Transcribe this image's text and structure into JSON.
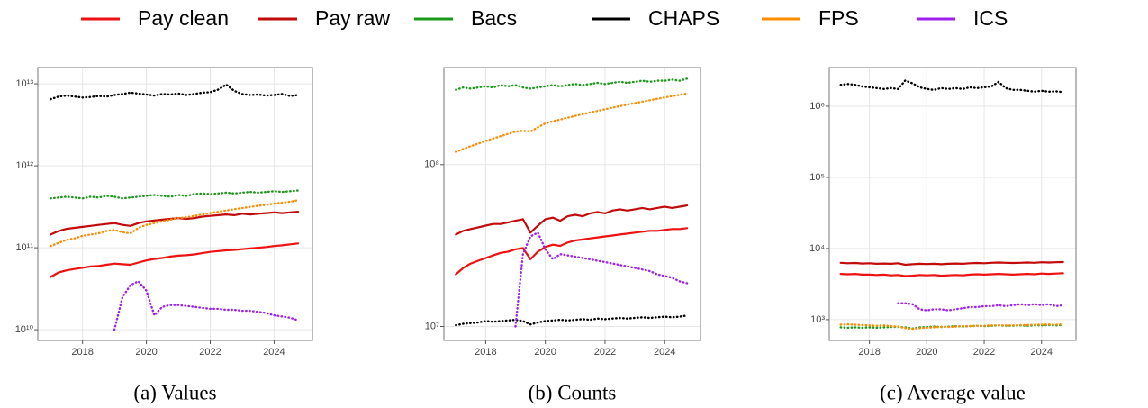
{
  "chart_data": [
    {
      "type": "line",
      "title": "(a) Values",
      "yscale": "log",
      "grid": true,
      "x": [
        2017,
        2017.25,
        2017.5,
        2017.75,
        2018,
        2018.25,
        2018.5,
        2018.75,
        2019,
        2019.25,
        2019.5,
        2019.75,
        2020,
        2020.25,
        2020.5,
        2020.75,
        2021,
        2021.25,
        2021.5,
        2021.75,
        2022,
        2022.25,
        2022.5,
        2022.75,
        2023,
        2023.25,
        2023.5,
        2023.75,
        2024,
        2024.25,
        2024.5,
        2024.75
      ],
      "xlim": [
        2016.6,
        2025.2
      ],
      "xticks": [
        2018,
        2020,
        2022,
        2024
      ],
      "ylim": [
        7400000000.0,
        15800000000000.0
      ],
      "yticks": [
        {
          "value": 10000000000.0,
          "label": "10¹⁰"
        },
        {
          "value": 100000000000.0,
          "label": "10¹¹"
        },
        {
          "value": 1000000000000.0,
          "label": "10¹²"
        },
        {
          "value": 10000000000000.0,
          "label": "10¹³"
        }
      ],
      "series": [
        {
          "name": "Pay clean",
          "color": "#ee1111",
          "style": "solid",
          "values": [
            44000000000.0,
            50000000000.0,
            53000000000.0,
            55000000000.0,
            57000000000.0,
            59000000000.0,
            60000000000.0,
            62000000000.0,
            64000000000.0,
            63000000000.0,
            62000000000.0,
            66000000000.0,
            70000000000.0,
            73000000000.0,
            75000000000.0,
            78000000000.0,
            80000000000.0,
            81000000000.0,
            83000000000.0,
            86000000000.0,
            89000000000.0,
            91000000000.0,
            93000000000.0,
            94000000000.0,
            96000000000.0,
            98000000000.0,
            100000000000.0,
            102000000000.0,
            105000000000.0,
            107000000000.0,
            110000000000.0,
            113000000000.0
          ]
        },
        {
          "name": "Pay raw",
          "color": "#c20a0a",
          "style": "solid",
          "values": [
            145000000000.0,
            160000000000.0,
            170000000000.0,
            175000000000.0,
            180000000000.0,
            185000000000.0,
            190000000000.0,
            195000000000.0,
            200000000000.0,
            190000000000.0,
            185000000000.0,
            200000000000.0,
            210000000000.0,
            215000000000.0,
            220000000000.0,
            225000000000.0,
            230000000000.0,
            225000000000.0,
            230000000000.0,
            240000000000.0,
            245000000000.0,
            250000000000.0,
            255000000000.0,
            250000000000.0,
            260000000000.0,
            255000000000.0,
            260000000000.0,
            265000000000.0,
            270000000000.0,
            265000000000.0,
            270000000000.0,
            275000000000.0
          ]
        },
        {
          "name": "Bacs",
          "color": "#1a9a1a",
          "style": "dotted",
          "values": [
            400000000000.0,
            410000000000.0,
            420000000000.0,
            410000000000.0,
            400000000000.0,
            420000000000.0,
            410000000000.0,
            430000000000.0,
            420000000000.0,
            400000000000.0,
            410000000000.0,
            420000000000.0,
            430000000000.0,
            440000000000.0,
            430000000000.0,
            420000000000.0,
            440000000000.0,
            430000000000.0,
            450000000000.0,
            460000000000.0,
            450000000000.0,
            460000000000.0,
            470000000000.0,
            460000000000.0,
            470000000000.0,
            480000000000.0,
            470000000000.0,
            480000000000.0,
            490000000000.0,
            480000000000.0,
            490000000000.0,
            500000000000.0
          ]
        },
        {
          "name": "CHAPS",
          "color": "#000000",
          "style": "dotted",
          "values": [
            6500000000000.0,
            7000000000000.0,
            7200000000000.0,
            7000000000000.0,
            6800000000000.0,
            6900000000000.0,
            7100000000000.0,
            7000000000000.0,
            7300000000000.0,
            7500000000000.0,
            7800000000000.0,
            7600000000000.0,
            7400000000000.0,
            7200000000000.0,
            7500000000000.0,
            7400000000000.0,
            7600000000000.0,
            7300000000000.0,
            7500000000000.0,
            7800000000000.0,
            7900000000000.0,
            8500000000000.0,
            9800000000000.0,
            8200000000000.0,
            7500000000000.0,
            7300000000000.0,
            7400000000000.0,
            7200000000000.0,
            7300000000000.0,
            7500000000000.0,
            7100000000000.0,
            7300000000000.0
          ]
        },
        {
          "name": "FPS",
          "color": "#ff8c00",
          "style": "dotted",
          "values": [
            105000000000.0,
            115000000000.0,
            125000000000.0,
            130000000000.0,
            140000000000.0,
            145000000000.0,
            150000000000.0,
            160000000000.0,
            165000000000.0,
            155000000000.0,
            150000000000.0,
            175000000000.0,
            190000000000.0,
            200000000000.0,
            210000000000.0,
            220000000000.0,
            230000000000.0,
            235000000000.0,
            245000000000.0,
            255000000000.0,
            265000000000.0,
            275000000000.0,
            285000000000.0,
            295000000000.0,
            305000000000.0,
            315000000000.0,
            325000000000.0,
            335000000000.0,
            345000000000.0,
            355000000000.0,
            365000000000.0,
            380000000000.0
          ]
        },
        {
          "name": "ICS",
          "color": "#a020f0",
          "style": "dotted",
          "values": [
            null,
            null,
            null,
            null,
            null,
            null,
            null,
            null,
            10000000000.0,
            25000000000.0,
            35000000000.0,
            39000000000.0,
            30000000000.0,
            15000000000.0,
            19000000000.0,
            20000000000.0,
            20000000000.0,
            19500000000.0,
            19000000000.0,
            18500000000.0,
            18000000000.0,
            18000000000.0,
            17500000000.0,
            17500000000.0,
            17000000000.0,
            17000000000.0,
            16500000000.0,
            16000000000.0,
            15000000000.0,
            14500000000.0,
            14000000000.0,
            13000000000.0
          ]
        }
      ]
    },
    {
      "type": "line",
      "title": "(b) Counts",
      "yscale": "log",
      "grid": true,
      "x": [
        2017,
        2017.25,
        2017.5,
        2017.75,
        2018,
        2018.25,
        2018.5,
        2018.75,
        2019,
        2019.25,
        2019.5,
        2019.75,
        2020,
        2020.25,
        2020.5,
        2020.75,
        2021,
        2021.25,
        2021.5,
        2021.75,
        2022,
        2022.25,
        2022.5,
        2022.75,
        2023,
        2023.25,
        2023.5,
        2023.75,
        2024,
        2024.25,
        2024.5,
        2024.75
      ],
      "xlim": [
        2016.6,
        2025.2
      ],
      "xticks": [
        2018,
        2020,
        2022,
        2024
      ],
      "ylim": [
        8200000.0,
        398000000.0
      ],
      "yticks": [
        {
          "value": 10000000.0,
          "label": "10⁷"
        },
        {
          "value": 100000000.0,
          "label": "10⁸"
        }
      ],
      "series": [
        {
          "name": "Pay clean",
          "color": "#ee1111",
          "style": "solid",
          "values": [
            21000000.0,
            23000000.0,
            24500000.0,
            25500000.0,
            26500000.0,
            27500000.0,
            28500000.0,
            29000000.0,
            30000000.0,
            30500000.0,
            26000000.0,
            29000000.0,
            31000000.0,
            32000000.0,
            31500000.0,
            33000000.0,
            34000000.0,
            34500000.0,
            35000000.0,
            35500000.0,
            36000000.0,
            36500000.0,
            37000000.0,
            37500000.0,
            38000000.0,
            38500000.0,
            39000000.0,
            39000000.0,
            39500000.0,
            40000000.0,
            40000000.0,
            40500000.0
          ]
        },
        {
          "name": "Pay raw",
          "color": "#c20a0a",
          "style": "solid",
          "values": [
            37000000.0,
            39000000.0,
            40000000.0,
            41000000.0,
            42000000.0,
            43000000.0,
            43000000.0,
            44000000.0,
            45000000.0,
            46000000.0,
            38000000.0,
            42000000.0,
            46000000.0,
            47000000.0,
            45000000.0,
            48000000.0,
            49000000.0,
            48000000.0,
            50000000.0,
            51000000.0,
            50000000.0,
            52000000.0,
            53000000.0,
            52000000.0,
            53000000.0,
            54000000.0,
            53000000.0,
            54000000.0,
            55000000.0,
            54000000.0,
            55000000.0,
            56000000.0
          ]
        },
        {
          "name": "Bacs",
          "color": "#1a9a1a",
          "style": "dotted",
          "values": [
            290000000.0,
            300000000.0,
            295000000.0,
            300000000.0,
            305000000.0,
            300000000.0,
            310000000.0,
            305000000.0,
            310000000.0,
            300000000.0,
            295000000.0,
            300000000.0,
            305000000.0,
            310000000.0,
            305000000.0,
            310000000.0,
            315000000.0,
            310000000.0,
            315000000.0,
            320000000.0,
            315000000.0,
            320000000.0,
            325000000.0,
            320000000.0,
            325000000.0,
            330000000.0,
            325000000.0,
            330000000.0,
            330000000.0,
            335000000.0,
            330000000.0,
            340000000.0
          ]
        },
        {
          "name": "CHAPS",
          "color": "#000000",
          "style": "dotted",
          "values": [
            10200000.0,
            10400000.0,
            10500000.0,
            10600000.0,
            10800000.0,
            10700000.0,
            10800000.0,
            10900000.0,
            11000000.0,
            10800000.0,
            10300000.0,
            10600000.0,
            10800000.0,
            10900000.0,
            11000000.0,
            10900000.0,
            11000000.0,
            11100000.0,
            11000000.0,
            11200000.0,
            11100000.0,
            11200000.0,
            11300000.0,
            11200000.0,
            11300000.0,
            11400000.0,
            11300000.0,
            11400000.0,
            11500000.0,
            11400000.0,
            11500000.0,
            11700000.0
          ]
        },
        {
          "name": "FPS",
          "color": "#ff8c00",
          "style": "dotted",
          "values": [
            120000000.0,
            125000000.0,
            130000000.0,
            135000000.0,
            140000000.0,
            145000000.0,
            150000000.0,
            155000000.0,
            160000000.0,
            162000000.0,
            160000000.0,
            170000000.0,
            180000000.0,
            185000000.0,
            190000000.0,
            195000000.0,
            200000000.0,
            205000000.0,
            210000000.0,
            215000000.0,
            220000000.0,
            225000000.0,
            230000000.0,
            235000000.0,
            240000000.0,
            245000000.0,
            250000000.0,
            255000000.0,
            260000000.0,
            265000000.0,
            270000000.0,
            275000000.0
          ]
        },
        {
          "name": "ICS",
          "color": "#a020f0",
          "style": "dotted",
          "values": [
            null,
            null,
            null,
            null,
            null,
            null,
            null,
            null,
            10000000.0,
            28000000.0,
            36000000.0,
            38000000.0,
            30000000.0,
            26000000.0,
            28000000.0,
            27500000.0,
            27000000.0,
            26500000.0,
            26000000.0,
            25500000.0,
            25000000.0,
            24500000.0,
            24000000.0,
            23500000.0,
            23000000.0,
            22500000.0,
            22000000.0,
            21000000.0,
            20500000.0,
            20000000.0,
            19000000.0,
            18500000.0
          ]
        }
      ]
    },
    {
      "type": "line",
      "title": "(c) Average value",
      "yscale": "log",
      "grid": true,
      "x": [
        2017,
        2017.25,
        2017.5,
        2017.75,
        2018,
        2018.25,
        2018.5,
        2018.75,
        2019,
        2019.25,
        2019.5,
        2019.75,
        2020,
        2020.25,
        2020.5,
        2020.75,
        2021,
        2021.25,
        2021.5,
        2021.75,
        2022,
        2022.25,
        2022.5,
        2022.75,
        2023,
        2023.25,
        2023.5,
        2023.75,
        2024,
        2024.25,
        2024.5,
        2024.75
      ],
      "xlim": [
        2016.6,
        2025.2
      ],
      "xticks": [
        2018,
        2020,
        2022,
        2024
      ],
      "ylim": [
        510,
        3500000.0
      ],
      "yticks": [
        {
          "value": 1000,
          "label": "10³"
        },
        {
          "value": 10000,
          "label": "10⁴"
        },
        {
          "value": 100000,
          "label": "10⁵"
        },
        {
          "value": 1000000,
          "label": "10⁶"
        }
      ],
      "series": [
        {
          "name": "Pay clean",
          "color": "#ee1111",
          "style": "solid",
          "values": [
            4400,
            4350,
            4400,
            4300,
            4300,
            4250,
            4300,
            4200,
            4250,
            4100,
            4150,
            4250,
            4200,
            4250,
            4150,
            4200,
            4250,
            4200,
            4300,
            4350,
            4300,
            4350,
            4400,
            4350,
            4300,
            4350,
            4400,
            4350,
            4450,
            4400,
            4450,
            4500
          ]
        },
        {
          "name": "Pay raw",
          "color": "#c20a0a",
          "style": "solid",
          "values": [
            6300,
            6200,
            6250,
            6150,
            6200,
            6100,
            6150,
            6100,
            6200,
            5900,
            6000,
            6100,
            6050,
            6100,
            6000,
            6100,
            6150,
            6100,
            6200,
            6250,
            6200,
            6300,
            6350,
            6300,
            6250,
            6300,
            6350,
            6300,
            6400,
            6350,
            6400,
            6450
          ]
        },
        {
          "name": "Bacs",
          "color": "#1a9a1a",
          "style": "dotted",
          "values": [
            780,
            770,
            780,
            770,
            780,
            770,
            780,
            790,
            790,
            780,
            750,
            780,
            790,
            800,
            790,
            800,
            810,
            800,
            810,
            820,
            810,
            820,
            830,
            820,
            820,
            830,
            820,
            830,
            830,
            840,
            830,
            840
          ]
        },
        {
          "name": "CHAPS",
          "color": "#000000",
          "style": "dotted",
          "values": [
            2000000.0,
            2050000.0,
            2000000.0,
            1900000.0,
            1850000.0,
            1800000.0,
            1750000.0,
            1800000.0,
            1750000.0,
            2300000.0,
            2100000.0,
            1850000.0,
            1750000.0,
            1700000.0,
            1800000.0,
            1750000.0,
            1800000.0,
            1750000.0,
            1850000.0,
            1800000.0,
            1850000.0,
            1900000.0,
            2200000.0,
            1800000.0,
            1700000.0,
            1700000.0,
            1650000.0,
            1600000.0,
            1650000.0,
            1600000.0,
            1620000.0,
            1580000.0
          ]
        },
        {
          "name": "FPS",
          "color": "#ff8c00",
          "style": "dotted",
          "values": [
            850,
            860,
            850,
            840,
            830,
            820,
            830,
            810,
            800,
            760,
            740,
            760,
            770,
            780,
            790,
            790,
            800,
            810,
            810,
            820,
            820,
            830,
            830,
            830,
            830,
            840,
            840,
            850,
            850,
            860,
            850,
            860
          ]
        },
        {
          "name": "ICS",
          "color": "#a020f0",
          "style": "dotted",
          "values": [
            null,
            null,
            null,
            null,
            null,
            null,
            null,
            null,
            1700,
            1700,
            1650,
            1400,
            1350,
            1400,
            1400,
            1350,
            1400,
            1450,
            1500,
            1500,
            1550,
            1550,
            1600,
            1550,
            1600,
            1650,
            1600,
            1650,
            1600,
            1650,
            1550,
            1600
          ]
        }
      ]
    }
  ]
}
